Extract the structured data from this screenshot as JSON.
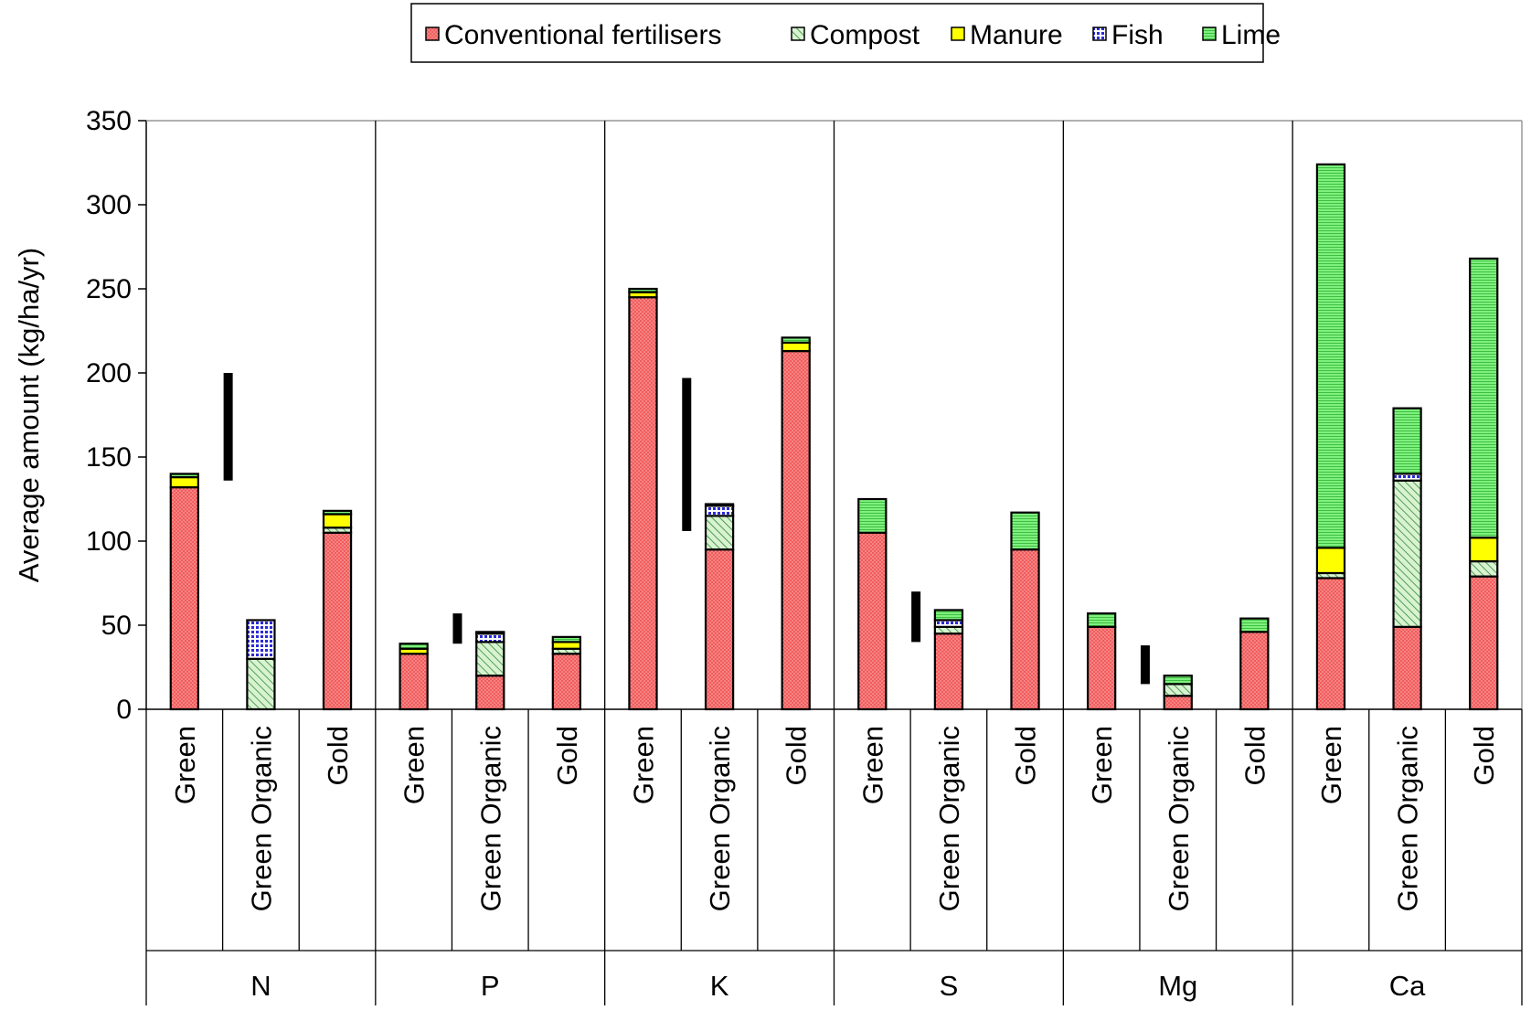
{
  "chart_data": {
    "type": "bar",
    "stacked": true,
    "ylabel": "Average amount  (kg/ha/yr)",
    "xlabel": "",
    "ylim": [
      0,
      350
    ],
    "yticks": [
      0,
      50,
      100,
      150,
      200,
      250,
      300,
      350
    ],
    "grid": false,
    "legend_position": "top",
    "groups": [
      "N",
      "P",
      "K",
      "S",
      "Mg",
      "Ca"
    ],
    "categories": [
      "Green",
      "Green Organic",
      "Gold"
    ],
    "series": [
      {
        "name": "Conventional fertilisers",
        "color": "#f25c5c",
        "pattern": "dots",
        "values": [
          [
            132,
            0,
            105
          ],
          [
            33,
            20,
            33
          ],
          [
            245,
            95,
            213
          ],
          [
            105,
            45,
            95
          ],
          [
            49,
            8,
            46
          ],
          [
            78,
            49,
            79
          ]
        ]
      },
      {
        "name": "Compost",
        "color": "#b8e6b0",
        "pattern": "diagonal",
        "values": [
          [
            0,
            30,
            3
          ],
          [
            0,
            20,
            3
          ],
          [
            0,
            20,
            0
          ],
          [
            0,
            4,
            0
          ],
          [
            0,
            7,
            0
          ],
          [
            3,
            87,
            9
          ]
        ]
      },
      {
        "name": "Manure",
        "color": "#ffff00",
        "pattern": "solid",
        "values": [
          [
            6,
            0,
            8
          ],
          [
            3,
            0,
            4
          ],
          [
            3,
            0,
            5
          ],
          [
            0,
            0,
            0
          ],
          [
            0,
            0,
            0
          ],
          [
            15,
            0,
            14
          ]
        ]
      },
      {
        "name": "Fish",
        "color": "#3b3bd9",
        "pattern": "grid",
        "values": [
          [
            0,
            23,
            0
          ],
          [
            0,
            5,
            0
          ],
          [
            0,
            6,
            0
          ],
          [
            0,
            4,
            0
          ],
          [
            0,
            0,
            0
          ],
          [
            0,
            4,
            0
          ]
        ]
      },
      {
        "name": "Lime",
        "color": "#6fe36f",
        "pattern": "hlines",
        "values": [
          [
            2,
            0,
            2
          ],
          [
            3,
            1,
            3
          ],
          [
            2,
            1,
            3
          ],
          [
            20,
            6,
            22
          ],
          [
            8,
            5,
            8
          ],
          [
            228,
            39,
            166
          ]
        ]
      }
    ],
    "range_bars": [
      {
        "group": "N",
        "low": 136,
        "high": 200
      },
      {
        "group": "P",
        "low": 39,
        "high": 57
      },
      {
        "group": "K",
        "low": 106,
        "high": 197
      },
      {
        "group": "S",
        "low": 40,
        "high": 70
      },
      {
        "group": "Mg",
        "low": 15,
        "high": 38
      }
    ]
  }
}
